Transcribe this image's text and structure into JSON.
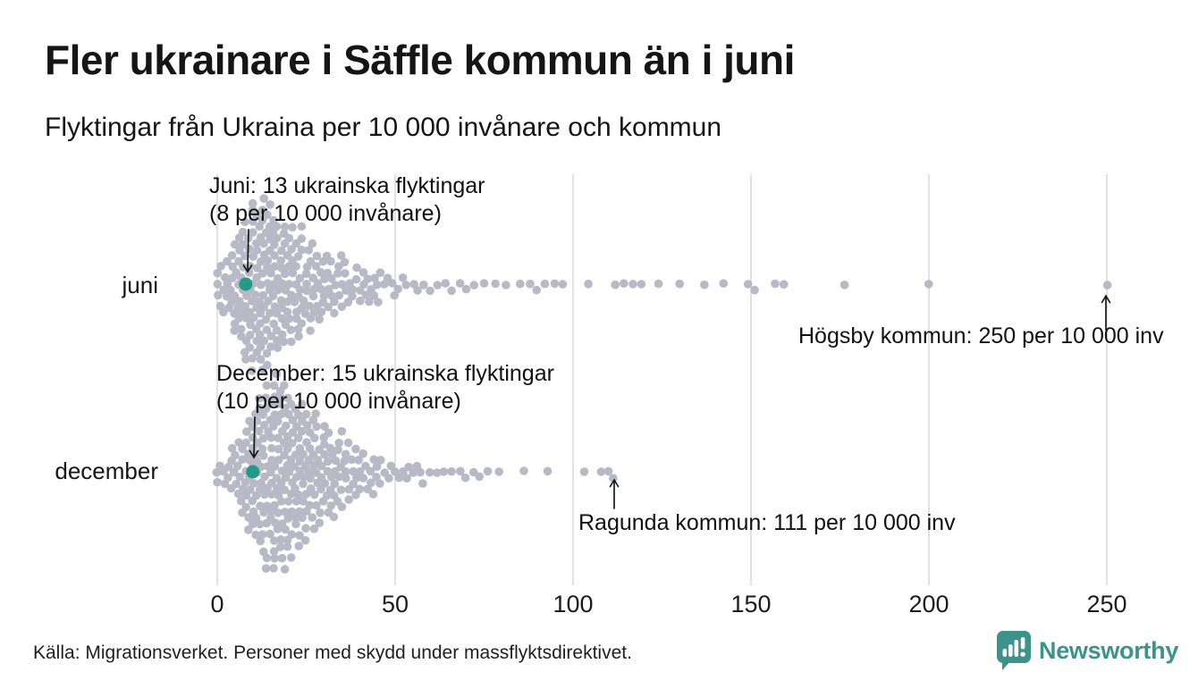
{
  "header": {
    "title": "Fler ukrainare i Säffle kommun än i juni",
    "subtitle": "Flyktingar från Ukraina per 10 000 invånare och kommun"
  },
  "chart_data": {
    "type": "scatter",
    "variant": "beeswarm",
    "unit": "flyktingar per 10 000 invånare",
    "grid": true,
    "xlim": [
      0,
      255
    ],
    "x_ticks": [
      0,
      50,
      100,
      150,
      200,
      250
    ],
    "rows": [
      {
        "label": "juni",
        "highlight": {
          "municipality": "Säffle kommun",
          "refugees": 13,
          "value_per_10000": 8
        },
        "max": {
          "municipality": "Högsby kommun",
          "value_per_10000": 250
        },
        "values_hist": [
          [
            0,
            3
          ],
          [
            1,
            2
          ],
          [
            2,
            3
          ],
          [
            3,
            4
          ],
          [
            4,
            5
          ],
          [
            5,
            6
          ],
          [
            6,
            7
          ],
          [
            7,
            8
          ],
          [
            8,
            9
          ],
          [
            9,
            9
          ],
          [
            10,
            10
          ],
          [
            11,
            10
          ],
          [
            12,
            10
          ],
          [
            13,
            10
          ],
          [
            14,
            10
          ],
          [
            15,
            9
          ],
          [
            16,
            9
          ],
          [
            17,
            8
          ],
          [
            18,
            8
          ],
          [
            19,
            7
          ],
          [
            20,
            7
          ],
          [
            21,
            7
          ],
          [
            22,
            6
          ],
          [
            23,
            6
          ],
          [
            24,
            6
          ],
          [
            25,
            5
          ],
          [
            26,
            5
          ],
          [
            27,
            5
          ],
          [
            28,
            4
          ],
          [
            29,
            4
          ],
          [
            30,
            4
          ],
          [
            31,
            4
          ],
          [
            32,
            3
          ],
          [
            33,
            3
          ],
          [
            34,
            3
          ],
          [
            35,
            3
          ],
          [
            36,
            3
          ],
          [
            37,
            2
          ],
          [
            38,
            2
          ],
          [
            39,
            2
          ],
          [
            40,
            2
          ],
          [
            41,
            2
          ],
          [
            42,
            2
          ],
          [
            43,
            2
          ],
          [
            44,
            2
          ],
          [
            45,
            2
          ],
          [
            46,
            1
          ],
          [
            47,
            1
          ],
          [
            48,
            1
          ],
          [
            49,
            1
          ],
          [
            50,
            1
          ],
          [
            51,
            1
          ],
          [
            52,
            1
          ],
          [
            53,
            1
          ],
          [
            55,
            1
          ],
          [
            56,
            1
          ],
          [
            58,
            1
          ],
          [
            60,
            1
          ],
          [
            62,
            1
          ],
          [
            64,
            1
          ],
          [
            66,
            1
          ],
          [
            68,
            1
          ],
          [
            70,
            1
          ],
          [
            72,
            1
          ],
          [
            75,
            1
          ],
          [
            78,
            1
          ],
          [
            81,
            1
          ],
          [
            85,
            1
          ],
          [
            88,
            1
          ],
          [
            90,
            1
          ],
          [
            92,
            1
          ],
          [
            95,
            1
          ],
          [
            97,
            1
          ],
          [
            104,
            1
          ],
          [
            112,
            1
          ],
          [
            114,
            1
          ],
          [
            117,
            1
          ],
          [
            119,
            1
          ],
          [
            124,
            1
          ],
          [
            130,
            1
          ],
          [
            137,
            1
          ],
          [
            142,
            1
          ],
          [
            149,
            1
          ],
          [
            151,
            1
          ],
          [
            157,
            1
          ],
          [
            159,
            1
          ],
          [
            176,
            1
          ],
          [
            200,
            1
          ],
          [
            250,
            1
          ]
        ]
      },
      {
        "label": "december",
        "highlight": {
          "municipality": "Säffle kommun",
          "refugees": 15,
          "value_per_10000": 10
        },
        "max": {
          "municipality": "Ragunda kommun",
          "value_per_10000": 111
        },
        "values_hist": [
          [
            0,
            2
          ],
          [
            1,
            1
          ],
          [
            2,
            2
          ],
          [
            3,
            2
          ],
          [
            4,
            3
          ],
          [
            5,
            3
          ],
          [
            6,
            4
          ],
          [
            7,
            5
          ],
          [
            8,
            6
          ],
          [
            9,
            7
          ],
          [
            10,
            8
          ],
          [
            11,
            9
          ],
          [
            12,
            9
          ],
          [
            13,
            10
          ],
          [
            14,
            10
          ],
          [
            15,
            11
          ],
          [
            16,
            11
          ],
          [
            17,
            11
          ],
          [
            18,
            11
          ],
          [
            19,
            10
          ],
          [
            20,
            10
          ],
          [
            21,
            10
          ],
          [
            22,
            9
          ],
          [
            23,
            9
          ],
          [
            24,
            8
          ],
          [
            25,
            8
          ],
          [
            26,
            7
          ],
          [
            27,
            7
          ],
          [
            28,
            6
          ],
          [
            29,
            6
          ],
          [
            30,
            6
          ],
          [
            31,
            5
          ],
          [
            32,
            5
          ],
          [
            33,
            5
          ],
          [
            34,
            4
          ],
          [
            35,
            4
          ],
          [
            36,
            4
          ],
          [
            37,
            3
          ],
          [
            38,
            3
          ],
          [
            39,
            3
          ],
          [
            40,
            3
          ],
          [
            41,
            2
          ],
          [
            42,
            2
          ],
          [
            43,
            2
          ],
          [
            44,
            2
          ],
          [
            45,
            2
          ],
          [
            46,
            2
          ],
          [
            47,
            1
          ],
          [
            48,
            1
          ],
          [
            49,
            1
          ],
          [
            50,
            1
          ],
          [
            51,
            1
          ],
          [
            52,
            1
          ],
          [
            53,
            1
          ],
          [
            54,
            1
          ],
          [
            55,
            1
          ],
          [
            56,
            1
          ],
          [
            57,
            1
          ],
          [
            58,
            1
          ],
          [
            60,
            1
          ],
          [
            62,
            1
          ],
          [
            64,
            1
          ],
          [
            66,
            1
          ],
          [
            68,
            1
          ],
          [
            70,
            1
          ],
          [
            72,
            1
          ],
          [
            74,
            1
          ],
          [
            76,
            1
          ],
          [
            79,
            1
          ],
          [
            86,
            1
          ],
          [
            93,
            1
          ],
          [
            103,
            1
          ],
          [
            108,
            1
          ],
          [
            110,
            1
          ],
          [
            111,
            1
          ]
        ]
      }
    ]
  },
  "annotations": {
    "juni_highlight": {
      "line1": "Juni: 13 ukrainska flyktingar",
      "line2": "(8 per 10 000 invånare)"
    },
    "dec_highlight": {
      "line1": "December: 15 ukrainska flyktingar",
      "line2": "(10 per 10 000 invånare)"
    },
    "juni_max": "Högsby kommun: 250 per 10 000 inv",
    "dec_max": "Ragunda kommun: 111 per 10 000 inv"
  },
  "footer": {
    "source": "Källa: Migrationsverket. Personer med skydd under massflyktsdirektivet.",
    "brand": "Newsworthy"
  },
  "colors": {
    "dot": "#b9b8c6",
    "highlight": "#23998a",
    "grid": "#d2d2d2",
    "brand": "#3d928c",
    "text": "#111111"
  }
}
